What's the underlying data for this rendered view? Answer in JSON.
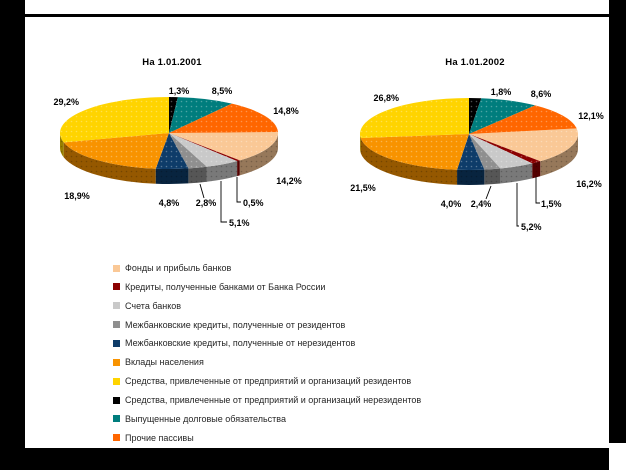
{
  "palette": {
    "background": "#ffffff",
    "frame": "#000000",
    "legend_text": "#262626"
  },
  "legend": [
    {
      "label": "Фонды и прибыль банков",
      "color": "#FAC896"
    },
    {
      "label": "Кредиты, полученные банками от Банка России",
      "color": "#8B0000"
    },
    {
      "label": "Счета банков",
      "color": "#C9C9C9"
    },
    {
      "label": "Межбанковские кредиты, полученные от резидентов",
      "color": "#8F8F8F"
    },
    {
      "label": "Межбанковские кредиты, полученные от нерезидентов",
      "color": "#0E3C69"
    },
    {
      "label": "Вклады населения",
      "color": "#F89300"
    },
    {
      "label": "Средства, привлеченные от предприятий и организаций резидентов",
      "color": "#FFD400"
    },
    {
      "label": "Средства, привлеченные от предприятий и организаций нерезидентов",
      "color": "#000000"
    },
    {
      "label": "Выпущенные долговые обязательства",
      "color": "#007D7D"
    },
    {
      "label": "Прочие пассивы",
      "color": "#FF6600"
    }
  ],
  "chart_data": [
    {
      "type": "pie",
      "style": "3d",
      "title": "На 1.01.2001",
      "legend_position": "bottom-shared",
      "categories": [
        "Фонды и прибыль банков",
        "Кредиты, полученные банками от Банка России",
        "Счета банков",
        "Межбанковские кредиты, полученные от резидентов",
        "Межбанковские кредиты, полученные от нерезидентов",
        "Вклады населения",
        "Средства, привлеченные от предприятий и организаций резидентов",
        "Средства, привлеченные от предприятий и организаций нерезидентов",
        "Выпущенные долговые обязательства",
        "Прочие пассивы"
      ],
      "values": [
        14.2,
        0.5,
        5.1,
        2.8,
        4.8,
        18.9,
        29.2,
        1.3,
        8.5,
        14.8
      ],
      "value_labels": [
        "14,2%",
        "0,5%",
        "5,1%",
        "2,8%",
        "4,8%",
        "18,9%",
        "29,2%",
        "1,3%",
        "8,5%",
        "14,8%"
      ],
      "colors": [
        "#FAC896",
        "#8B0000",
        "#C9C9C9",
        "#8F8F8F",
        "#0E3C69",
        "#F89300",
        "#FFD400",
        "#000000",
        "#007D7D",
        "#FF6600"
      ]
    },
    {
      "type": "pie",
      "style": "3d",
      "title": "На 1.01.2002",
      "legend_position": "bottom-shared",
      "categories": [
        "Фонды и прибыль банков",
        "Кредиты, полученные банками от Банка России",
        "Счета банков",
        "Межбанковские кредиты, полученные от резидентов",
        "Межбанковские кредиты, полученные от нерезидентов",
        "Вклады населения",
        "Средства, привлеченные от предприятий и организаций резидентов",
        "Средства, привлеченные от предприятий и организаций нерезидентов",
        "Выпущенные долговые обязательства",
        "Прочие пассивы"
      ],
      "values": [
        16.2,
        1.5,
        5.2,
        2.4,
        4.0,
        21.5,
        26.8,
        1.8,
        8.6,
        12.1
      ],
      "value_labels": [
        "16,2%",
        "1,5%",
        "5,2%",
        "2,4%",
        "4,0%",
        "21,5%",
        "26,8%",
        "1,8%",
        "8,6%",
        "12,1%"
      ],
      "colors": [
        "#FAC896",
        "#8B0000",
        "#C9C9C9",
        "#8F8F8F",
        "#0E3C69",
        "#F89300",
        "#FFD400",
        "#000000",
        "#007D7D",
        "#FF6600"
      ]
    }
  ]
}
